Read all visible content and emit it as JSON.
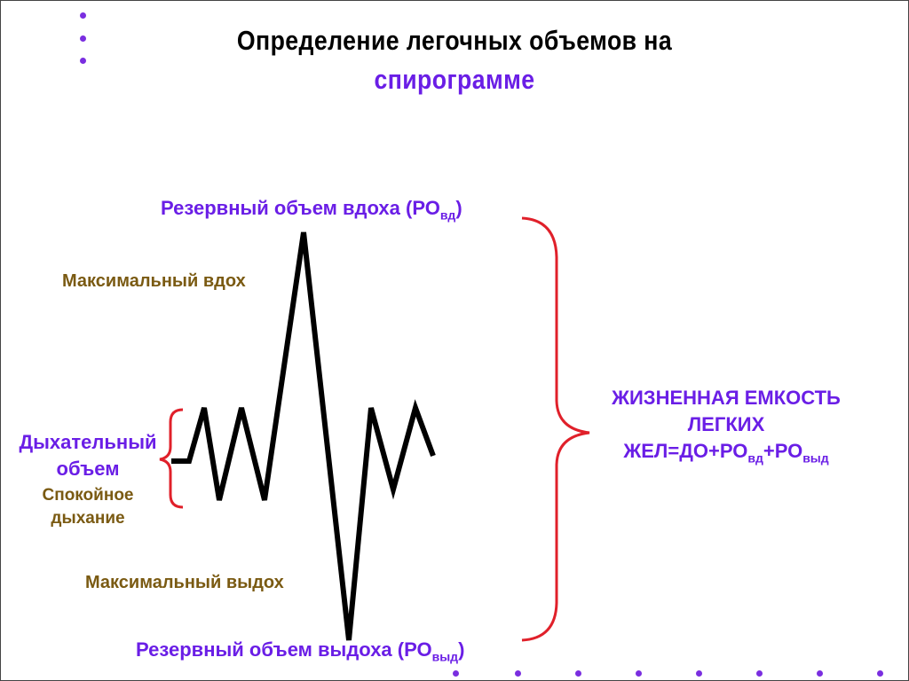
{
  "title": {
    "line1": "Определение  легочных  объемов  на",
    "line2": "спирограмме"
  },
  "labels": {
    "reserve_inhale": {
      "text": "Резервный объем  вдоха (РО",
      "sub": "вд",
      "close": ")"
    },
    "max_inhale": "Максимальный  вдох",
    "tidal_line1": "Дыхательный",
    "tidal_line2": "объем",
    "calm_line1": "Спокойное",
    "calm_line2": "дыхание",
    "max_exhale": "Максимальный  выдох",
    "reserve_exhale": {
      "text": "Резервный  объем   выдоха (РО",
      "sub": "выд",
      "close": ")"
    },
    "vc_line1": "ЖИЗНЕННАЯ ЕМКОСТЬ",
    "vc_line2": "ЛЕГКИХ",
    "formula": {
      "a": "ЖЕЛ=ДО+РО",
      "sub1": "вд",
      "b": "+РО",
      "sub2": "выд"
    }
  },
  "colors": {
    "accent_purple": "#6a1ee6",
    "label_brown": "#7a5a12",
    "brace_red": "#e0202a",
    "curve": "#000000"
  }
}
